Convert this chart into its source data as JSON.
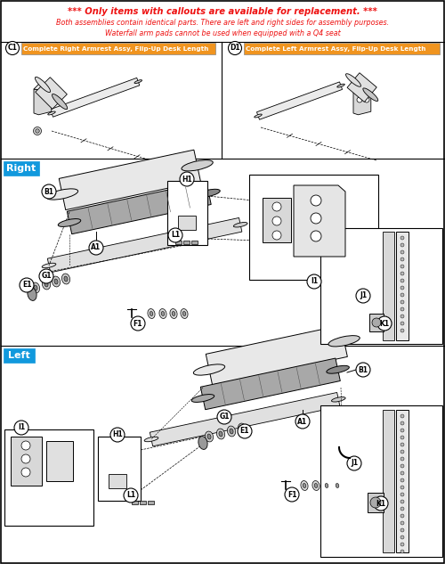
{
  "title_line1": "*** Only items with callouts are available for replacement. ***",
  "title_line2": "Both assemblies contain identical parts. There are left and right sides for assembly purposes.",
  "title_line3": "Waterfall arm pads cannot be used when equipped with a Q4 seat",
  "title_color": "#ee1111",
  "bg_color": "#ffffff",
  "orange_color": "#f0941f",
  "blue_color": "#1199dd",
  "label_c1": "Complete Right Armrest Assy, Flip-Up Desk Length",
  "label_d1": "Complete Left Armrest Assy, Flip-Up Desk Length",
  "right_label": "Right",
  "left_label": "Left",
  "figsize": [
    5.0,
    6.33
  ],
  "dpi": 100
}
